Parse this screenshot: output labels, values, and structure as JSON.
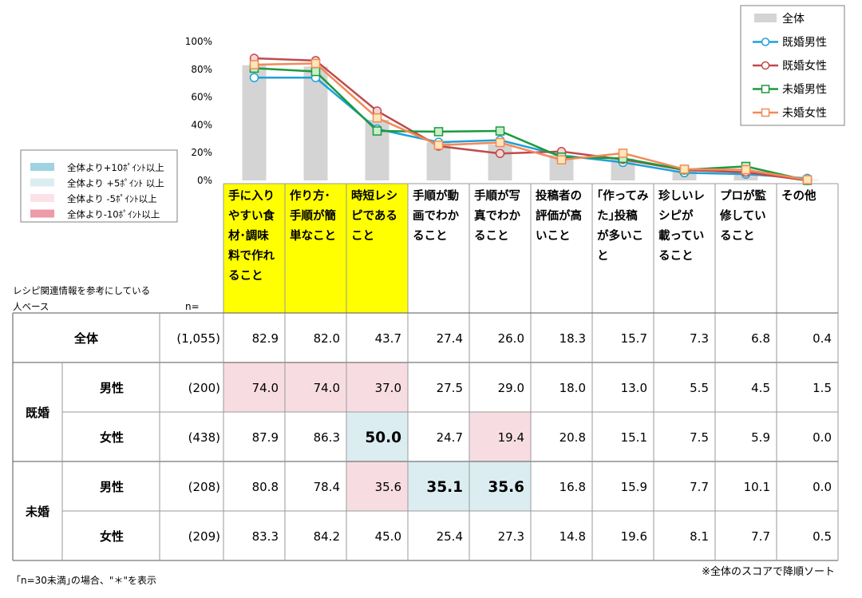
{
  "legend_main": {
    "items": [
      {
        "name": "全体",
        "type": "bar",
        "color": "#d4d4d4"
      },
      {
        "name": "既婚男性",
        "type": "line",
        "color": "#1fa0d8",
        "marker": "circle"
      },
      {
        "name": "既婚女性",
        "type": "line",
        "color": "#bf4b4b",
        "marker": "circle"
      },
      {
        "name": "未婚男性",
        "type": "line",
        "color": "#1a9a3e",
        "marker": "square"
      },
      {
        "name": "未婚女性",
        "type": "line",
        "color": "#f28a58",
        "marker": "square"
      }
    ]
  },
  "legend_highlight": {
    "items": [
      {
        "label": "全体より+10ﾎﾟｲﾝﾄ以上",
        "color": "#9fd3e2"
      },
      {
        "label": "全体より +5ﾎﾟｲﾝﾄ 以上",
        "color": "#dcedf1"
      },
      {
        "label": "全体より -5ﾎﾟｲﾝﾄ以上",
        "color": "#fbe2e6"
      },
      {
        "label": "全体より-10ﾎﾟｲﾝﾄ以上",
        "color": "#ee9aa9"
      }
    ]
  },
  "chart_data": {
    "type": "bar+line",
    "ylim": [
      0,
      100
    ],
    "yticks": [
      "0%",
      "20%",
      "40%",
      "60%",
      "80%",
      "100%"
    ],
    "categories": [
      "手に入りやすい食材･調味料で作れること",
      "作り方･手順が簡単なこと",
      "時短レシピであること",
      "手順が動画でわかること",
      "手順が写真でわかること",
      "投稿者の評価が高いこと",
      "「作ってみた」投稿が多いこと",
      "珍しいレシピが載っていること",
      "プロが監修していること",
      "その他"
    ],
    "category_lines": [
      [
        "手に入り",
        "やすい食",
        "材･調味",
        "料で作れ",
        "ること"
      ],
      [
        "作り方･",
        "手順が簡",
        "単なこと"
      ],
      [
        "時短レシ",
        "ピである",
        "こと"
      ],
      [
        "手順が動",
        "画でわか",
        "ること"
      ],
      [
        "手順が写",
        "真でわか",
        "ること"
      ],
      [
        "投稿者の",
        "評価が高",
        "いこと"
      ],
      [
        "｢作ってみ",
        "た｣投稿",
        "が多いこ",
        "と"
      ],
      [
        "珍しいレ",
        "シピが",
        "載ってい",
        "ること"
      ],
      [
        "プロが監",
        "修してい",
        "ること"
      ],
      [
        "その他"
      ]
    ],
    "highlighted_categories": [
      0,
      1,
      2
    ],
    "series": [
      {
        "name": "全体",
        "n": "(1,055)",
        "values": [
          82.9,
          82.0,
          43.7,
          27.4,
          26.0,
          18.3,
          15.7,
          7.3,
          6.8,
          0.4
        ]
      },
      {
        "name": "既婚男性",
        "n": "(200)",
        "values": [
          74.0,
          74.0,
          37.0,
          27.5,
          29.0,
          18.0,
          13.0,
          5.5,
          4.5,
          1.5
        ]
      },
      {
        "name": "既婚女性",
        "n": "(438)",
        "values": [
          87.9,
          86.3,
          50.0,
          24.7,
          19.4,
          20.8,
          15.1,
          7.5,
          5.9,
          0.0
        ]
      },
      {
        "name": "未婚男性",
        "n": "(208)",
        "values": [
          80.8,
          78.4,
          35.6,
          35.1,
          35.6,
          16.8,
          15.9,
          7.7,
          10.1,
          0.0
        ]
      },
      {
        "name": "未婚女性",
        "n": "(209)",
        "values": [
          83.3,
          84.2,
          45.0,
          25.4,
          27.3,
          14.8,
          19.6,
          8.1,
          7.7,
          0.5
        ]
      }
    ]
  },
  "table": {
    "base_label": [
      "レシピ関連情報を参考にしている",
      "人ベース"
    ],
    "n_header": "n=",
    "rows": [
      {
        "group": "",
        "label": "全体",
        "n": "(1,055)",
        "cells": [
          "82.9",
          "82.0",
          "43.7",
          "27.4",
          "26.0",
          "18.3",
          "15.7",
          "7.3",
          "6.8",
          "0.4"
        ],
        "hl": [
          "",
          "",
          "",
          "",
          "",
          "",
          "",
          "",
          "",
          ""
        ],
        "bold": []
      },
      {
        "group": "既婚",
        "label": "男性",
        "n": "(200)",
        "cells": [
          "74.0",
          "74.0",
          "37.0",
          "27.5",
          "29.0",
          "18.0",
          "13.0",
          "5.5",
          "4.5",
          "1.5"
        ],
        "hl": [
          "pink",
          "pink",
          "pink",
          "",
          "",
          "",
          "",
          "",
          "",
          ""
        ],
        "bold": []
      },
      {
        "group": "既婚",
        "label": "女性",
        "n": "(438)",
        "cells": [
          "87.9",
          "86.3",
          "50.0",
          "24.7",
          "19.4",
          "20.8",
          "15.1",
          "7.5",
          "5.9",
          "0.0"
        ],
        "hl": [
          "",
          "",
          "blue",
          "",
          "pink",
          "",
          "",
          "",
          "",
          ""
        ],
        "bold": [
          2
        ]
      },
      {
        "group": "未婚",
        "label": "男性",
        "n": "(208)",
        "cells": [
          "80.8",
          "78.4",
          "35.6",
          "35.1",
          "35.6",
          "16.8",
          "15.9",
          "7.7",
          "10.1",
          "0.0"
        ],
        "hl": [
          "",
          "",
          "pink",
          "blue",
          "blue",
          "",
          "",
          "",
          "",
          ""
        ],
        "bold": [
          3,
          4
        ]
      },
      {
        "group": "未婚",
        "label": "女性",
        "n": "(209)",
        "cells": [
          "83.3",
          "84.2",
          "45.0",
          "25.4",
          "27.3",
          "14.8",
          "19.6",
          "8.1",
          "7.7",
          "0.5"
        ],
        "hl": [
          "",
          "",
          "",
          "",
          "",
          "",
          "",
          "",
          "",
          ""
        ],
        "bold": []
      }
    ],
    "groups": [
      {
        "label": "既婚",
        "rows": [
          1,
          2
        ]
      },
      {
        "label": "未婚",
        "rows": [
          3,
          4
        ]
      }
    ]
  },
  "notes": {
    "sort_note": "※全体のスコアで降順ソート",
    "n_note": "｢n=30未満｣の場合、\"＊\"を表示"
  }
}
